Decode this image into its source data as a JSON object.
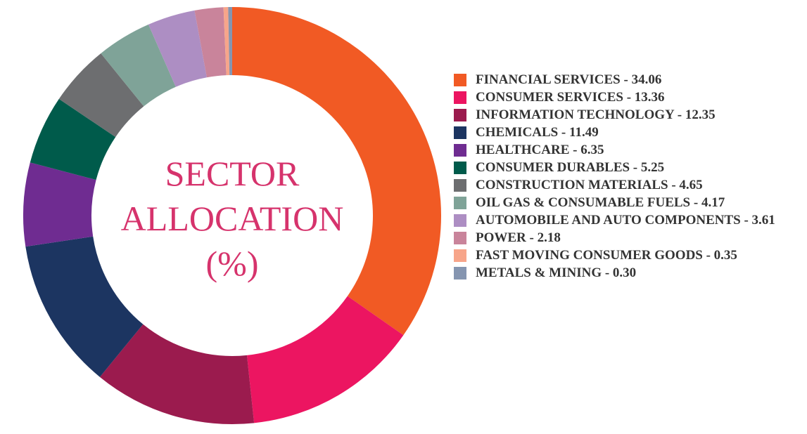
{
  "chart_data": {
    "type": "donut",
    "title": [
      "SECTOR",
      "ALLOCATION",
      "(%)"
    ],
    "categories": [
      "FINANCIAL SERVICES - 34.06",
      "CONSUMER SERVICES - 13.36",
      "INFORMATION TECHNOLOGY - 12.35",
      "CHEMICALS - 11.49",
      "HEALTHCARE - 6.35",
      "CONSUMER DURABLES - 5.25",
      "CONSTRUCTION MATERIALS - 4.65",
      "OIL GAS & CONSUMABLE FUELS - 4.17",
      "AUTOMOBILE AND AUTO COMPONENTS - 3.61",
      "POWER - 2.18",
      "FAST MOVING CONSUMER GOODS - 0.35",
      "METALS & MINING - 0.30"
    ],
    "values": [
      34.06,
      13.36,
      12.35,
      11.49,
      6.35,
      5.25,
      4.65,
      4.17,
      3.61,
      2.18,
      0.35,
      0.3
    ],
    "colors": [
      "#f15a24",
      "#ec1561",
      "#9b1b4e",
      "#1c3561",
      "#6f2c91",
      "#005b4b",
      "#6d6e70",
      "#7fa398",
      "#ad8ec3",
      "#c9849b",
      "#f7a58a",
      "#8595b0"
    ]
  }
}
